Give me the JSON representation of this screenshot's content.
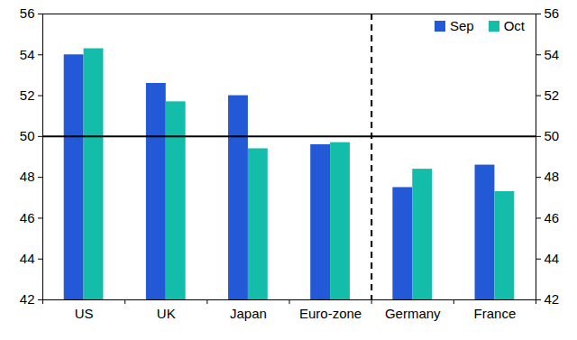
{
  "chart_data": {
    "type": "bar",
    "categories": [
      "US",
      "UK",
      "Japan",
      "Euro-zone",
      "Germany",
      "France"
    ],
    "series": [
      {
        "name": "Sep",
        "color": "#2358d6",
        "values": [
          54.0,
          52.6,
          52.0,
          49.6,
          47.5,
          48.6
        ]
      },
      {
        "name": "Oct",
        "color": "#13bdaa",
        "values": [
          54.3,
          51.7,
          49.4,
          49.7,
          48.4,
          47.3
        ]
      }
    ],
    "ylim": [
      42,
      56
    ],
    "yticks": [
      42,
      44,
      46,
      48,
      50,
      52,
      54,
      56
    ],
    "grid": false,
    "legend": "upper right",
    "reference_line": 50,
    "divider_after": "Euro-zone"
  }
}
